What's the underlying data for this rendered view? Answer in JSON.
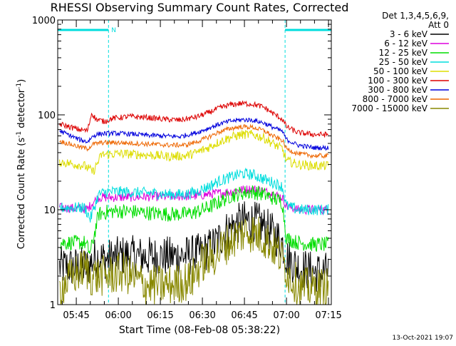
{
  "chart_data": {
    "type": "line",
    "title": "RHESSI Observing Summary Count Rates, Corrected",
    "xlabel": "Start Time (08-Feb-08 05:38:22)",
    "ylabel": "Corrected Count Rate (s",
    "ylabel_sup1": "-1",
    "ylabel_mid": " detector",
    "ylabel_sup2": "-1",
    "ylabel_end": ")",
    "y_scale": "log",
    "ylim": [
      1,
      1000
    ],
    "xlim_minutes": [
      38.37,
      136.0
    ],
    "x_ticks": [
      {
        "label": "05:45",
        "m": 45
      },
      {
        "label": "06:00",
        "m": 60
      },
      {
        "label": "06:15",
        "m": 75
      },
      {
        "label": "06:30",
        "m": 90
      },
      {
        "label": "06:45",
        "m": 105
      },
      {
        "label": "07:00",
        "m": 120
      },
      {
        "label": "07:15",
        "m": 135
      }
    ],
    "y_ticks": [
      {
        "label": "1",
        "v": 1
      },
      {
        "label": "10",
        "v": 10
      },
      {
        "label": "100",
        "v": 100
      },
      {
        "label": "1000",
        "v": 1000
      }
    ],
    "legend_header": [
      "Det 1,3,4,5,6,9,",
      "Att 0"
    ],
    "legend_position": "right",
    "background": "#ffffff",
    "footer_date": "13-Oct-2021 19:07",
    "night_marker": "N",
    "night_periods": [
      {
        "start_m": 38.37,
        "end_m": 56.5
      },
      {
        "start_m": 119.5,
        "end_m": 136.0
      }
    ],
    "series": [
      {
        "name": "3 - 6 keV",
        "color": "#000000",
        "points": [
          [
            39,
            2.5
          ],
          [
            49,
            2.5
          ],
          [
            52,
            3.2
          ],
          [
            56,
            3.0
          ],
          [
            62,
            3.3
          ],
          [
            70,
            3.2
          ],
          [
            78,
            3.2
          ],
          [
            86,
            3.3
          ],
          [
            90,
            3.5
          ],
          [
            94,
            4.2
          ],
          [
            98,
            5.8
          ],
          [
            102,
            7.0
          ],
          [
            105,
            7.6
          ],
          [
            108,
            7.6
          ],
          [
            111,
            7.0
          ],
          [
            114,
            6.0
          ],
          [
            117,
            5.0
          ],
          [
            118.5,
            4.5
          ],
          [
            120,
            3.2
          ],
          [
            124,
            2.5
          ],
          [
            130,
            2.2
          ],
          [
            135,
            2.2
          ]
        ]
      },
      {
        "name": "6 - 12 keV",
        "color": "#dd00dd",
        "points": [
          [
            39,
            10.5
          ],
          [
            49,
            10.2
          ],
          [
            51,
            12
          ],
          [
            53,
            13.5
          ],
          [
            60,
            13.5
          ],
          [
            70,
            13.7
          ],
          [
            80,
            13.8
          ],
          [
            88,
            14
          ],
          [
            92,
            14.5
          ],
          [
            96,
            15
          ],
          [
            100,
            15.5
          ],
          [
            104,
            16.2
          ],
          [
            108,
            16.5
          ],
          [
            111,
            16
          ],
          [
            114,
            15
          ],
          [
            117,
            14
          ],
          [
            118.5,
            13.5
          ],
          [
            120,
            11
          ],
          [
            124,
            10
          ],
          [
            130,
            10
          ],
          [
            135,
            10
          ]
        ]
      },
      {
        "name": "12 - 25 keV",
        "color": "#00dd00",
        "points": [
          [
            39,
            4.5
          ],
          [
            48,
            4.5
          ],
          [
            50,
            3.5
          ],
          [
            53,
            9
          ],
          [
            56,
            9.5
          ],
          [
            60,
            9.7
          ],
          [
            66,
            9.5
          ],
          [
            72,
            9.2
          ],
          [
            78,
            9
          ],
          [
            84,
            9
          ],
          [
            88,
            9.5
          ],
          [
            92,
            10.5
          ],
          [
            96,
            12
          ],
          [
            100,
            14
          ],
          [
            104,
            15
          ],
          [
            108,
            15.5
          ],
          [
            112,
            14.5
          ],
          [
            116,
            13
          ],
          [
            118.5,
            12
          ],
          [
            120,
            5
          ],
          [
            124,
            4.5
          ],
          [
            130,
            4.3
          ],
          [
            135,
            4.3
          ]
        ]
      },
      {
        "name": "25 - 50 keV",
        "color": "#00dddd",
        "points": [
          [
            39,
            10.5
          ],
          [
            48,
            10.5
          ],
          [
            50,
            8
          ],
          [
            53,
            14.5
          ],
          [
            56,
            15.5
          ],
          [
            60,
            15.5
          ],
          [
            66,
            15.2
          ],
          [
            72,
            15
          ],
          [
            78,
            14.5
          ],
          [
            84,
            14.5
          ],
          [
            88,
            15.5
          ],
          [
            92,
            17.5
          ],
          [
            96,
            20
          ],
          [
            100,
            22
          ],
          [
            104,
            24
          ],
          [
            108,
            23.5
          ],
          [
            112,
            21
          ],
          [
            116,
            19
          ],
          [
            118.5,
            17.5
          ],
          [
            120,
            11
          ],
          [
            124,
            10
          ],
          [
            130,
            10
          ],
          [
            135,
            10
          ]
        ]
      },
      {
        "name": "50 - 100 keV",
        "color": "#dddd00",
        "points": [
          [
            39,
            32
          ],
          [
            48,
            29
          ],
          [
            51,
            25
          ],
          [
            54,
            38
          ],
          [
            60,
            39
          ],
          [
            66,
            38.5
          ],
          [
            72,
            37.5
          ],
          [
            78,
            36.5
          ],
          [
            84,
            37
          ],
          [
            88,
            40
          ],
          [
            92,
            45
          ],
          [
            96,
            52
          ],
          [
            100,
            58
          ],
          [
            104,
            62
          ],
          [
            108,
            62
          ],
          [
            112,
            57
          ],
          [
            116,
            48
          ],
          [
            118.5,
            44
          ],
          [
            120,
            33
          ],
          [
            124,
            30
          ],
          [
            130,
            29
          ],
          [
            135,
            29
          ]
        ]
      },
      {
        "name": "100 - 300 keV",
        "color": "#dd0000",
        "points": [
          [
            39,
            80
          ],
          [
            46,
            70
          ],
          [
            49,
            68
          ],
          [
            50.5,
            105
          ],
          [
            52,
            90
          ],
          [
            55,
            85
          ],
          [
            58,
            92
          ],
          [
            64,
            96
          ],
          [
            70,
            94
          ],
          [
            76,
            90
          ],
          [
            82,
            88
          ],
          [
            88,
            95
          ],
          [
            92,
            105
          ],
          [
            96,
            118
          ],
          [
            100,
            128
          ],
          [
            104,
            132
          ],
          [
            108,
            130
          ],
          [
            112,
            120
          ],
          [
            116,
            100
          ],
          [
            118.5,
            90
          ],
          [
            120,
            75
          ],
          [
            124,
            65
          ],
          [
            130,
            62
          ],
          [
            135,
            62
          ]
        ]
      },
      {
        "name": "300 - 800 keV",
        "color": "#0000dd",
        "points": [
          [
            39,
            68
          ],
          [
            46,
            55
          ],
          [
            49,
            52
          ],
          [
            51,
            60
          ],
          [
            53,
            63
          ],
          [
            58,
            64
          ],
          [
            64,
            63
          ],
          [
            70,
            61
          ],
          [
            76,
            60
          ],
          [
            82,
            59
          ],
          [
            88,
            65
          ],
          [
            92,
            72
          ],
          [
            96,
            80
          ],
          [
            100,
            86
          ],
          [
            104,
            89
          ],
          [
            108,
            88
          ],
          [
            112,
            82
          ],
          [
            116,
            72
          ],
          [
            118.5,
            67
          ],
          [
            120,
            55
          ],
          [
            124,
            48
          ],
          [
            130,
            45
          ],
          [
            135,
            45
          ]
        ]
      },
      {
        "name": "800 - 7000 keV",
        "color": "#ee6600",
        "points": [
          [
            39,
            53
          ],
          [
            46,
            46
          ],
          [
            49,
            44
          ],
          [
            51,
            49
          ],
          [
            54,
            51
          ],
          [
            60,
            51
          ],
          [
            66,
            50
          ],
          [
            72,
            49
          ],
          [
            78,
            48
          ],
          [
            84,
            48
          ],
          [
            88,
            52
          ],
          [
            92,
            58
          ],
          [
            96,
            66
          ],
          [
            100,
            72
          ],
          [
            104,
            75
          ],
          [
            108,
            74
          ],
          [
            112,
            68
          ],
          [
            116,
            58
          ],
          [
            118.5,
            54
          ],
          [
            120,
            44
          ],
          [
            124,
            39
          ],
          [
            130,
            37
          ],
          [
            135,
            37
          ]
        ]
      },
      {
        "name": "7000 - 15000 keV",
        "color": "#888800",
        "points": [
          [
            39,
            1.5
          ],
          [
            48,
            2.5
          ],
          [
            50,
            2.0
          ],
          [
            53,
            2.0
          ],
          [
            56,
            2.0
          ],
          [
            62,
            2.2
          ],
          [
            70,
            1.6
          ],
          [
            78,
            1.6
          ],
          [
            86,
            1.8
          ],
          [
            90,
            2.8
          ],
          [
            94,
            3.2
          ],
          [
            98,
            4.2
          ],
          [
            102,
            5.2
          ],
          [
            105,
            5.8
          ],
          [
            108,
            5.8
          ],
          [
            111,
            5.2
          ],
          [
            114,
            4.5
          ],
          [
            117,
            3.5
          ],
          [
            119,
            2.8
          ],
          [
            121,
            2.0
          ],
          [
            125,
            1.5
          ],
          [
            130,
            1.5
          ],
          [
            135,
            1.5
          ]
        ]
      }
    ]
  }
}
